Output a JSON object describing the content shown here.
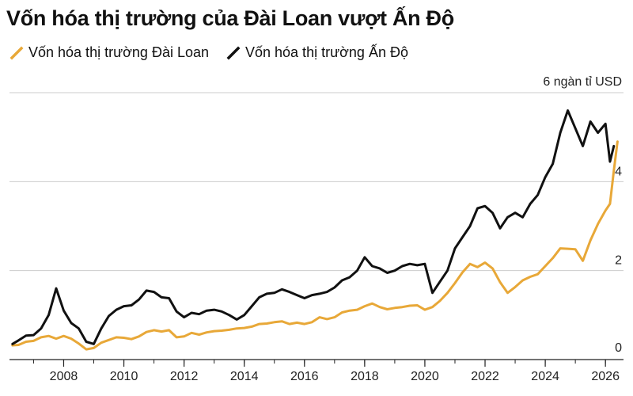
{
  "chart_data": {
    "type": "line",
    "title": "Vốn hóa thị trường của Đài Loan vượt Ấn Độ",
    "unit_label": "6 ngàn tỉ USD",
    "xlabel": "",
    "ylabel": "",
    "xlim": [
      2006.2,
      2026.6
    ],
    "ylim": [
      0,
      6
    ],
    "x_ticks": [
      "2008",
      "2010",
      "2012",
      "2014",
      "2016",
      "2018",
      "2020",
      "2022",
      "2024",
      "2026"
    ],
    "y_ticks": [
      "2",
      "4"
    ],
    "y_zero_label": "0",
    "grid": "horizontal",
    "legend_position": "top-left",
    "series": [
      {
        "name": "Vốn hóa thị trường Đài Loan",
        "color": "#E8A838",
        "points": [
          [
            2006.3,
            0.32
          ],
          [
            2006.5,
            0.33
          ],
          [
            2006.75,
            0.4
          ],
          [
            2007.0,
            0.42
          ],
          [
            2007.25,
            0.5
          ],
          [
            2007.5,
            0.53
          ],
          [
            2007.75,
            0.47
          ],
          [
            2008.0,
            0.53
          ],
          [
            2008.25,
            0.47
          ],
          [
            2008.5,
            0.36
          ],
          [
            2008.75,
            0.23
          ],
          [
            2009.0,
            0.26
          ],
          [
            2009.25,
            0.38
          ],
          [
            2009.5,
            0.44
          ],
          [
            2009.75,
            0.5
          ],
          [
            2010.0,
            0.49
          ],
          [
            2010.25,
            0.46
          ],
          [
            2010.5,
            0.52
          ],
          [
            2010.75,
            0.62
          ],
          [
            2011.0,
            0.66
          ],
          [
            2011.25,
            0.63
          ],
          [
            2011.5,
            0.66
          ],
          [
            2011.75,
            0.5
          ],
          [
            2012.0,
            0.52
          ],
          [
            2012.25,
            0.6
          ],
          [
            2012.5,
            0.56
          ],
          [
            2012.75,
            0.61
          ],
          [
            2013.0,
            0.64
          ],
          [
            2013.25,
            0.65
          ],
          [
            2013.5,
            0.67
          ],
          [
            2013.75,
            0.7
          ],
          [
            2014.0,
            0.71
          ],
          [
            2014.25,
            0.74
          ],
          [
            2014.5,
            0.8
          ],
          [
            2014.75,
            0.81
          ],
          [
            2015.0,
            0.84
          ],
          [
            2015.25,
            0.86
          ],
          [
            2015.5,
            0.8
          ],
          [
            2015.75,
            0.83
          ],
          [
            2016.0,
            0.8
          ],
          [
            2016.25,
            0.84
          ],
          [
            2016.5,
            0.95
          ],
          [
            2016.75,
            0.91
          ],
          [
            2017.0,
            0.95
          ],
          [
            2017.25,
            1.06
          ],
          [
            2017.5,
            1.1
          ],
          [
            2017.75,
            1.12
          ],
          [
            2018.0,
            1.2
          ],
          [
            2018.25,
            1.26
          ],
          [
            2018.5,
            1.18
          ],
          [
            2018.75,
            1.13
          ],
          [
            2019.0,
            1.16
          ],
          [
            2019.25,
            1.18
          ],
          [
            2019.5,
            1.21
          ],
          [
            2019.75,
            1.22
          ],
          [
            2020.0,
            1.12
          ],
          [
            2020.25,
            1.18
          ],
          [
            2020.5,
            1.32
          ],
          [
            2020.75,
            1.5
          ],
          [
            2021.0,
            1.72
          ],
          [
            2021.25,
            1.96
          ],
          [
            2021.5,
            2.15
          ],
          [
            2021.75,
            2.08
          ],
          [
            2022.0,
            2.18
          ],
          [
            2022.25,
            2.05
          ],
          [
            2022.5,
            1.74
          ],
          [
            2022.75,
            1.5
          ],
          [
            2023.0,
            1.63
          ],
          [
            2023.25,
            1.78
          ],
          [
            2023.5,
            1.86
          ],
          [
            2023.75,
            1.92
          ],
          [
            2024.0,
            2.1
          ],
          [
            2024.25,
            2.28
          ],
          [
            2024.5,
            2.5
          ],
          [
            2024.75,
            2.49
          ],
          [
            2025.0,
            2.48
          ],
          [
            2025.25,
            2.22
          ],
          [
            2025.5,
            2.68
          ],
          [
            2025.75,
            3.05
          ],
          [
            2026.0,
            3.35
          ],
          [
            2026.15,
            3.5
          ],
          [
            2026.28,
            4.25
          ],
          [
            2026.4,
            4.9
          ]
        ]
      },
      {
        "name": "Vốn hóa thị trường Ấn Độ",
        "color": "#111111",
        "points": [
          [
            2006.3,
            0.35
          ],
          [
            2006.5,
            0.43
          ],
          [
            2006.75,
            0.54
          ],
          [
            2007.0,
            0.55
          ],
          [
            2007.25,
            0.7
          ],
          [
            2007.5,
            1.0
          ],
          [
            2007.75,
            1.6
          ],
          [
            2008.0,
            1.1
          ],
          [
            2008.25,
            0.82
          ],
          [
            2008.5,
            0.7
          ],
          [
            2008.75,
            0.4
          ],
          [
            2009.0,
            0.35
          ],
          [
            2009.25,
            0.7
          ],
          [
            2009.5,
            0.98
          ],
          [
            2009.75,
            1.12
          ],
          [
            2010.0,
            1.2
          ],
          [
            2010.25,
            1.22
          ],
          [
            2010.5,
            1.35
          ],
          [
            2010.75,
            1.55
          ],
          [
            2011.0,
            1.52
          ],
          [
            2011.25,
            1.4
          ],
          [
            2011.5,
            1.38
          ],
          [
            2011.75,
            1.08
          ],
          [
            2012.0,
            0.95
          ],
          [
            2012.25,
            1.05
          ],
          [
            2012.5,
            1.02
          ],
          [
            2012.75,
            1.1
          ],
          [
            2013.0,
            1.12
          ],
          [
            2013.25,
            1.08
          ],
          [
            2013.5,
            1.0
          ],
          [
            2013.75,
            0.9
          ],
          [
            2014.0,
            1.0
          ],
          [
            2014.25,
            1.2
          ],
          [
            2014.5,
            1.4
          ],
          [
            2014.75,
            1.48
          ],
          [
            2015.0,
            1.5
          ],
          [
            2015.25,
            1.58
          ],
          [
            2015.5,
            1.52
          ],
          [
            2015.75,
            1.45
          ],
          [
            2016.0,
            1.38
          ],
          [
            2016.25,
            1.45
          ],
          [
            2016.5,
            1.48
          ],
          [
            2016.75,
            1.52
          ],
          [
            2017.0,
            1.62
          ],
          [
            2017.25,
            1.78
          ],
          [
            2017.5,
            1.85
          ],
          [
            2017.75,
            2.0
          ],
          [
            2018.0,
            2.3
          ],
          [
            2018.25,
            2.1
          ],
          [
            2018.5,
            2.05
          ],
          [
            2018.75,
            1.95
          ],
          [
            2019.0,
            2.0
          ],
          [
            2019.25,
            2.1
          ],
          [
            2019.5,
            2.15
          ],
          [
            2019.75,
            2.12
          ],
          [
            2020.0,
            2.15
          ],
          [
            2020.25,
            1.5
          ],
          [
            2020.5,
            1.75
          ],
          [
            2020.75,
            2.0
          ],
          [
            2021.0,
            2.5
          ],
          [
            2021.25,
            2.75
          ],
          [
            2021.5,
            3.0
          ],
          [
            2021.75,
            3.4
          ],
          [
            2022.0,
            3.45
          ],
          [
            2022.25,
            3.3
          ],
          [
            2022.5,
            2.95
          ],
          [
            2022.75,
            3.2
          ],
          [
            2023.0,
            3.3
          ],
          [
            2023.25,
            3.2
          ],
          [
            2023.5,
            3.5
          ],
          [
            2023.75,
            3.7
          ],
          [
            2024.0,
            4.1
          ],
          [
            2024.25,
            4.4
          ],
          [
            2024.5,
            5.1
          ],
          [
            2024.75,
            5.6
          ],
          [
            2025.0,
            5.2
          ],
          [
            2025.25,
            4.8
          ],
          [
            2025.5,
            5.35
          ],
          [
            2025.75,
            5.1
          ],
          [
            2026.0,
            5.3
          ],
          [
            2026.15,
            4.45
          ],
          [
            2026.28,
            4.8
          ]
        ]
      }
    ]
  }
}
